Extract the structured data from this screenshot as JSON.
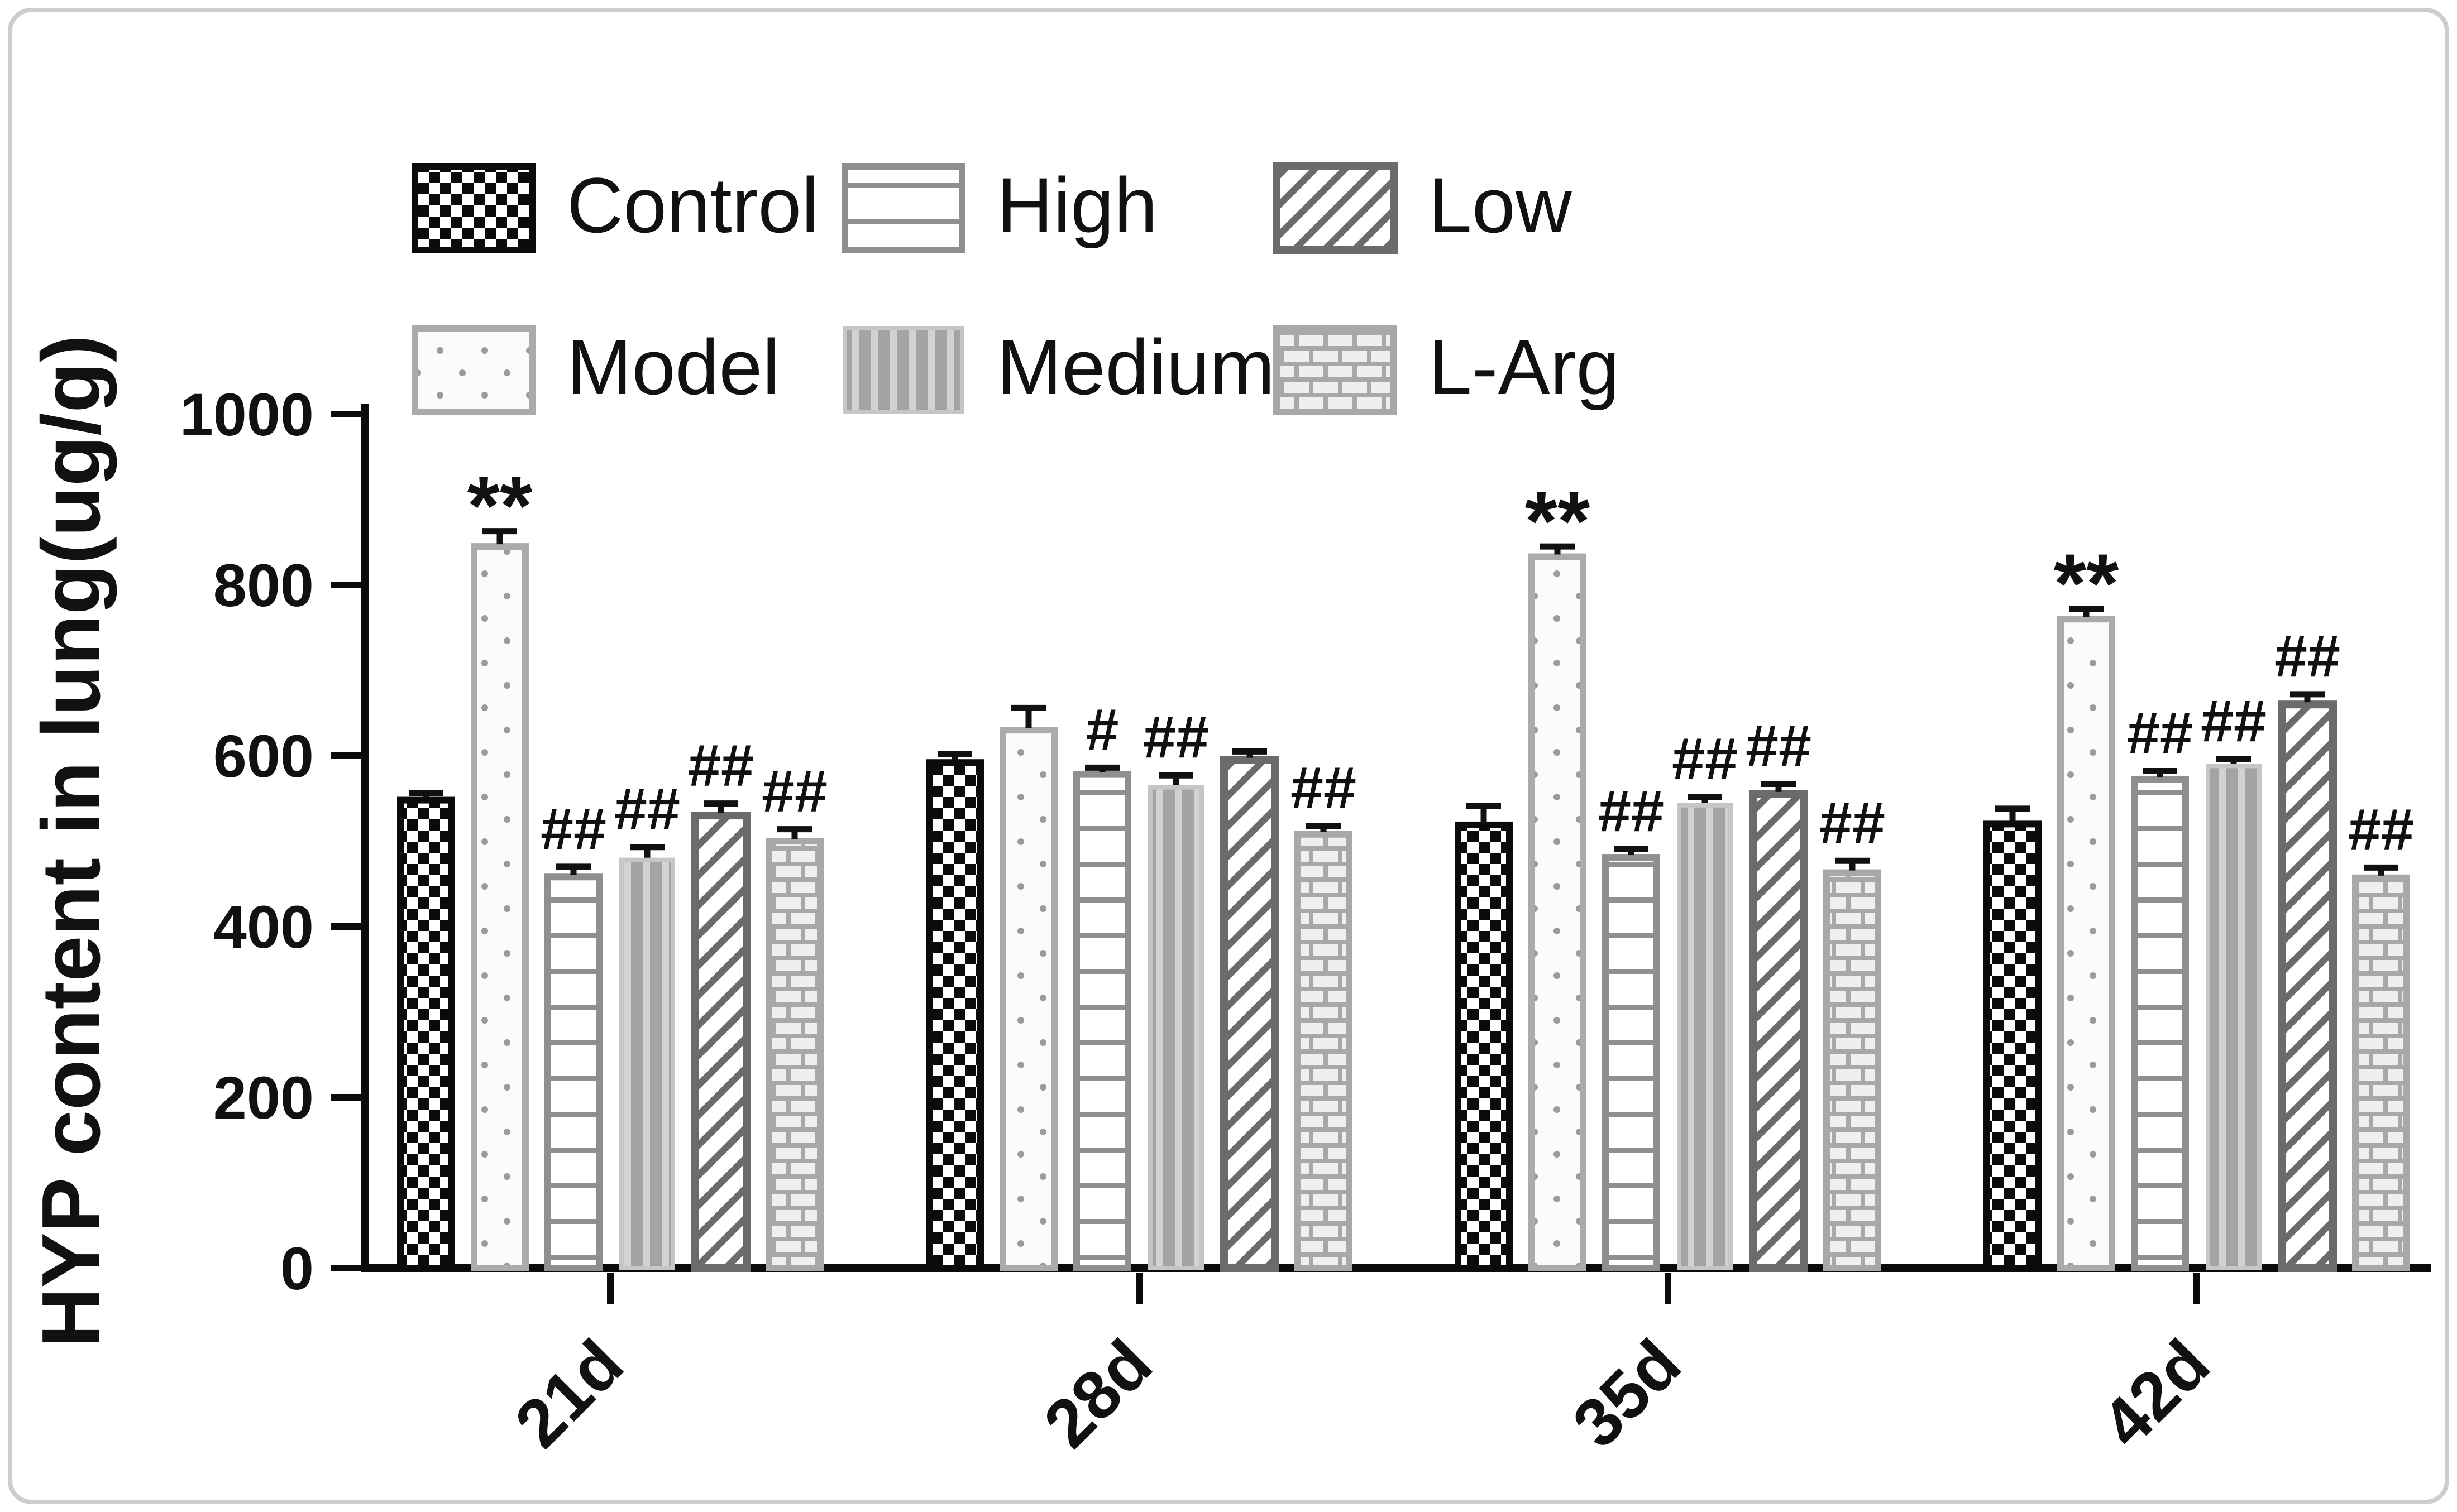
{
  "figure": {
    "background": "#ffffff",
    "frame_border_color": "#cdcdcd",
    "axis_color": "#0b0b0b"
  },
  "chart_data": {
    "type": "bar",
    "title": "",
    "xlabel": "",
    "ylabel": "HYP content in lung(ug/g)",
    "ylim": [
      0,
      1000
    ],
    "yticks": [
      0,
      200,
      400,
      600,
      800,
      1000
    ],
    "categories": [
      "21d",
      "28d",
      "35d",
      "42d"
    ],
    "grid": false,
    "legend_position": "top",
    "error_bars": true,
    "series": [
      {
        "name": "Control",
        "pattern": "checkerboard",
        "colors": {
          "border": "#0b0b0b",
          "fill_fg": "#0b0b0b",
          "fill_bg": "#ffffff"
        },
        "values": [
          548,
          592,
          519,
          520
        ],
        "errors": [
          8,
          10,
          22,
          18
        ],
        "annotations": [
          "",
          "",
          "",
          ""
        ]
      },
      {
        "name": "Model",
        "pattern": "dots",
        "colors": {
          "border": "#ababab",
          "fill_fg": "#9b9b9b",
          "fill_bg": "#fbfbfb"
        },
        "values": [
          845,
          630,
          833,
          760
        ],
        "errors": [
          18,
          26,
          12,
          12
        ],
        "annotations": [
          "**",
          "",
          "**",
          "**"
        ]
      },
      {
        "name": "High",
        "pattern": "horizontal-lines",
        "colors": {
          "border": "#8f8f8f",
          "fill_fg": "#8f8f8f",
          "fill_bg": "#ffffff"
        },
        "values": [
          458,
          578,
          481,
          572
        ],
        "errors": [
          12,
          8,
          10,
          10
        ],
        "annotations": [
          "##",
          "#",
          "##",
          "##"
        ]
      },
      {
        "name": "Medium",
        "pattern": "vertical-bars",
        "colors": {
          "border": "#c6c6c6",
          "fill_fg": "#a4a4a4",
          "fill_bg": "#d2d2d2"
        },
        "values": [
          478,
          563,
          542,
          588
        ],
        "errors": [
          15,
          14,
          10,
          8
        ],
        "annotations": [
          "##",
          "##",
          "##",
          "##"
        ]
      },
      {
        "name": "Low",
        "pattern": "diagonal-stripes",
        "colors": {
          "border": "#6b6b6b",
          "fill_fg": "#6b6b6b",
          "fill_bg": "#ffffff"
        },
        "values": [
          530,
          595,
          555,
          660
        ],
        "errors": [
          14,
          10,
          12,
          12
        ],
        "annotations": [
          "##",
          "",
          "##",
          "##"
        ]
      },
      {
        "name": "L-Arg",
        "pattern": "bricks",
        "colors": {
          "border": "#a8a8a8",
          "fill_fg": "#a8a8a8",
          "fill_bg": "#efefef"
        },
        "values": [
          500,
          508,
          463,
          457
        ],
        "errors": [
          14,
          10,
          14,
          12
        ],
        "annotations": [
          "##",
          "##",
          "##",
          "##"
        ]
      }
    ],
    "legend_rows": [
      [
        "Control",
        "High",
        "Low"
      ],
      [
        "Model",
        "Medium",
        "L-Arg"
      ]
    ]
  }
}
